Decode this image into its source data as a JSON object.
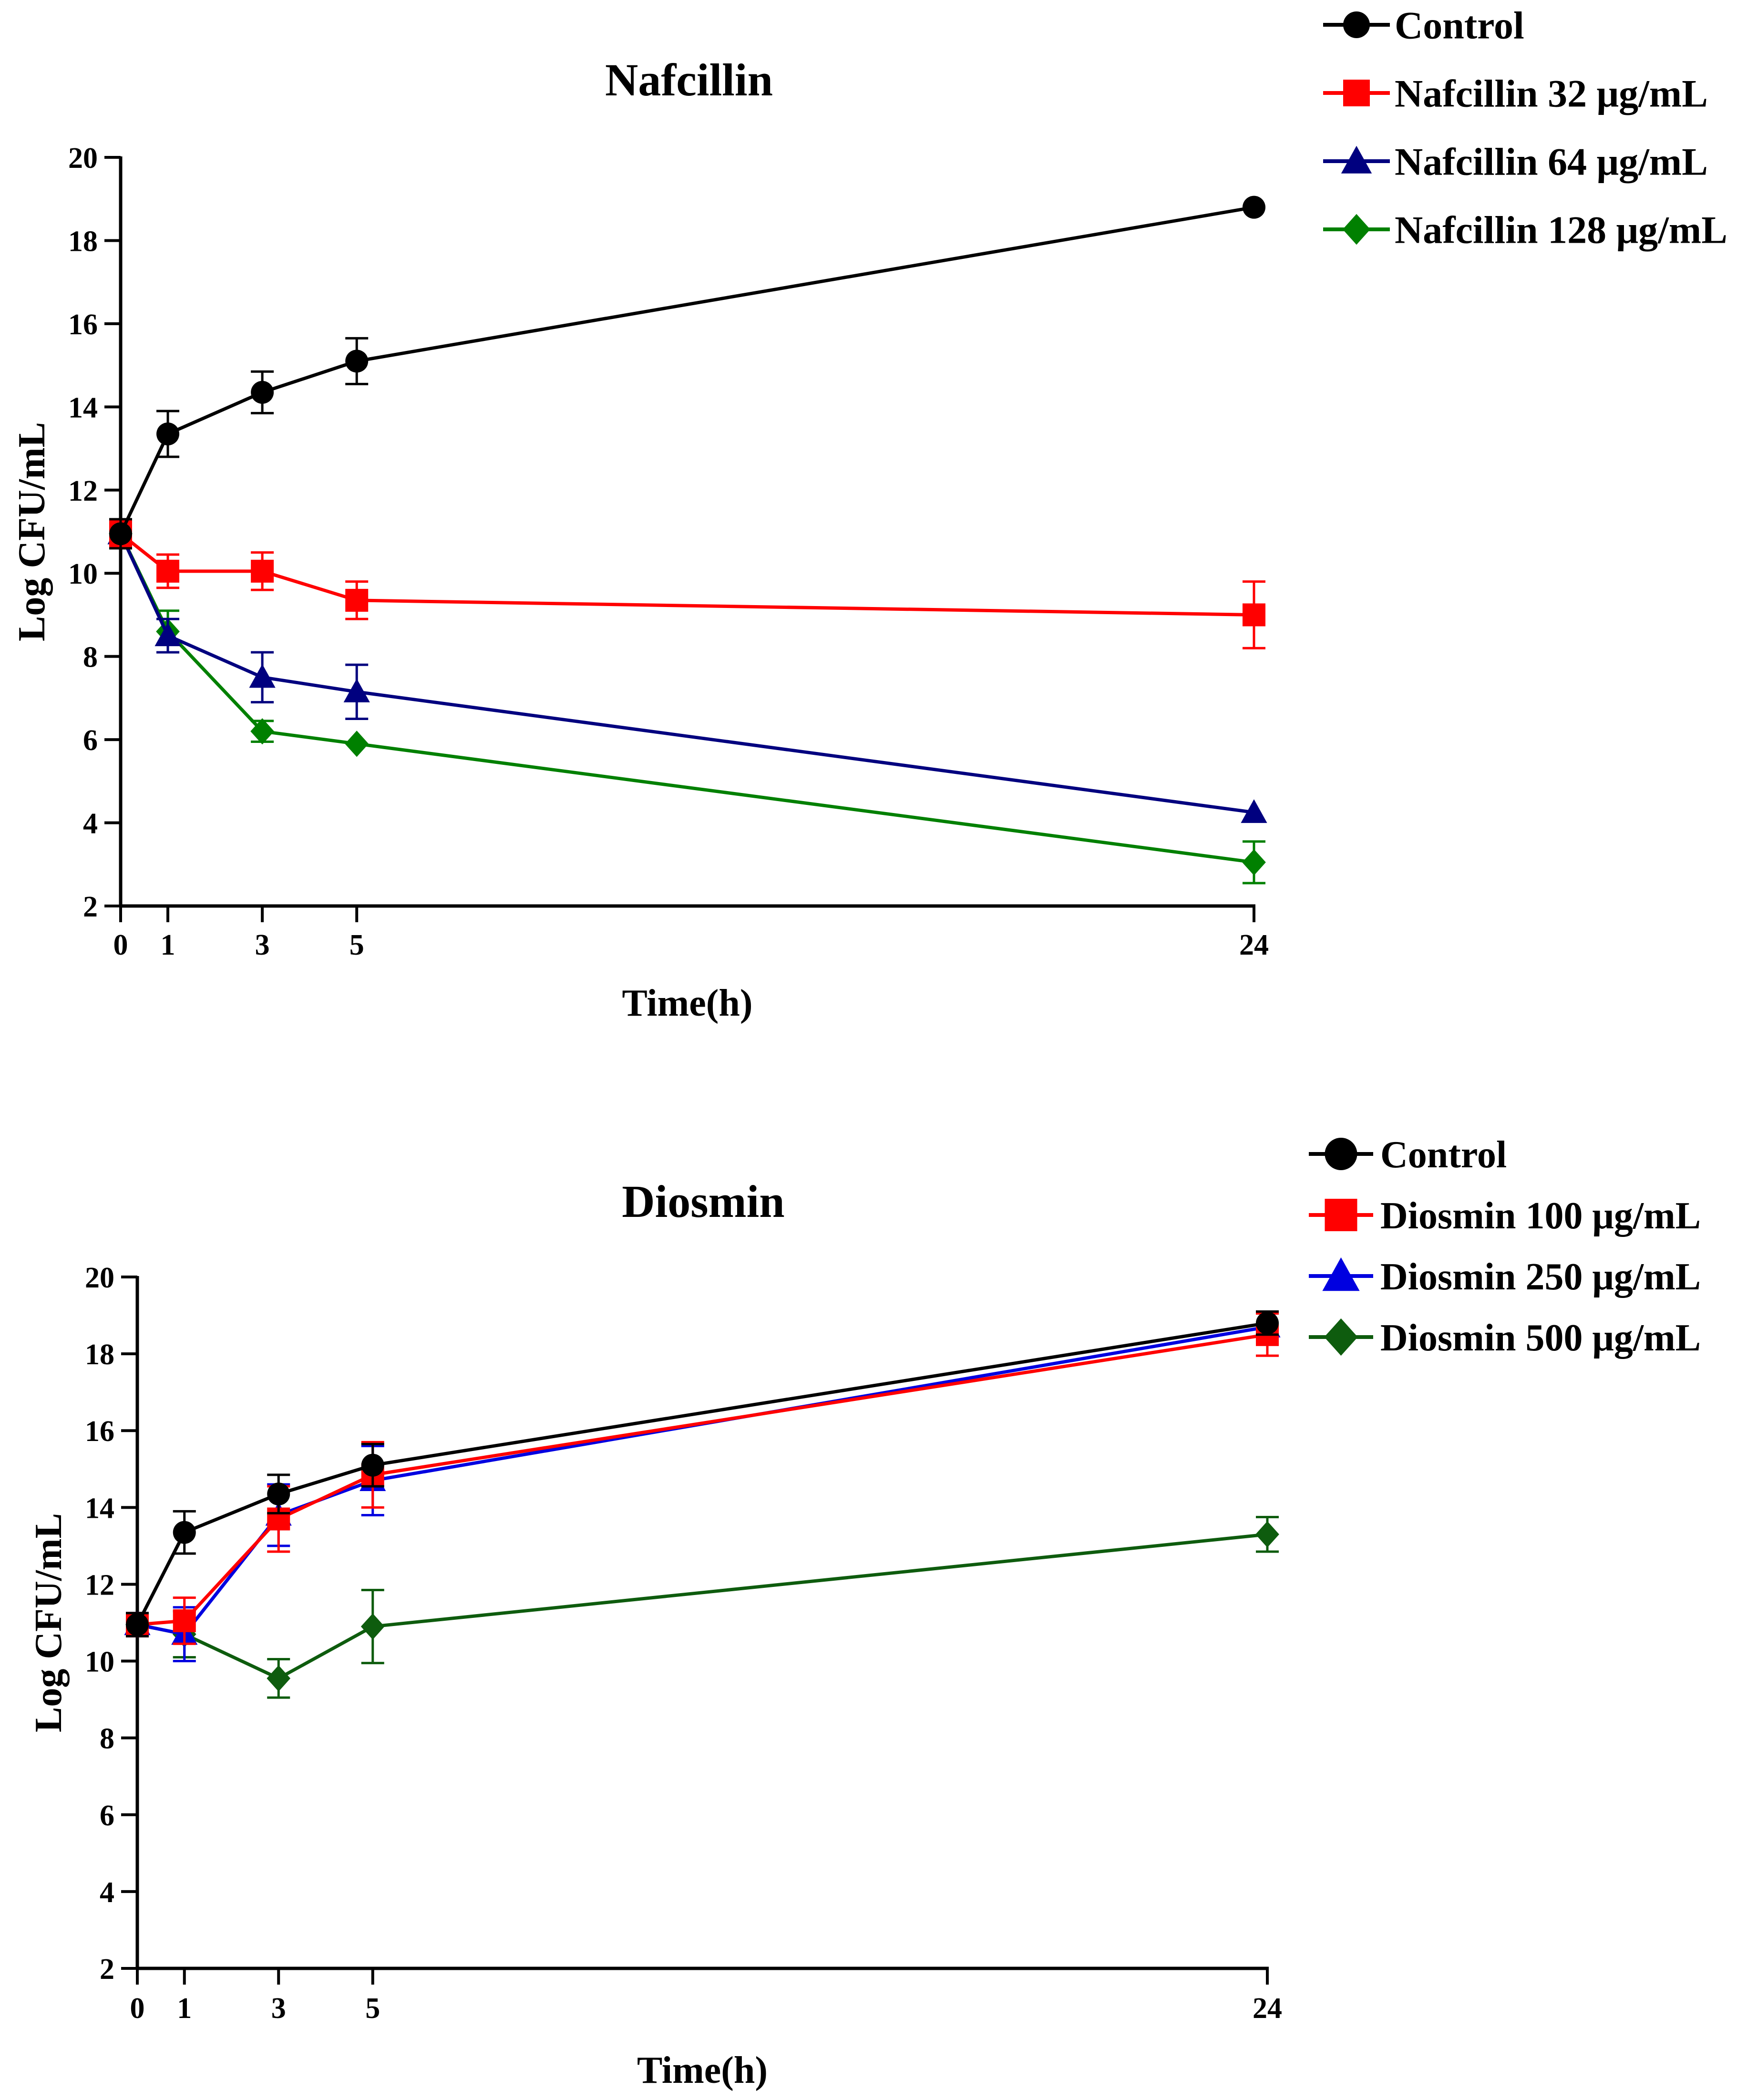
{
  "chart_data": [
    {
      "type": "line",
      "title": "Nafcillin",
      "xlabel": "Time(h)",
      "ylabel": "Log CFU/mL",
      "xlim": [
        0,
        24
      ],
      "ylim": [
        2,
        20
      ],
      "x_ticks": [
        0,
        1,
        3,
        5,
        24
      ],
      "y_ticks": [
        2,
        4,
        6,
        8,
        10,
        12,
        14,
        16,
        18,
        20
      ],
      "legend_position": "top-right",
      "x": [
        0,
        1,
        3,
        5,
        24
      ],
      "series": [
        {
          "name": "Control",
          "color": "#000000",
          "marker": "circle",
          "values": [
            10.95,
            13.35,
            14.35,
            15.1,
            18.8
          ],
          "errors": [
            0.35,
            0.55,
            0.5,
            0.55,
            0.0
          ]
        },
        {
          "name": "Nafcillin 32 μg/mL",
          "color": "#ff0000",
          "marker": "square",
          "values": [
            10.95,
            10.05,
            10.05,
            9.35,
            9.0
          ],
          "errors": [
            0.3,
            0.4,
            0.45,
            0.45,
            0.8
          ]
        },
        {
          "name": "Nafcillin 64 μg/mL",
          "color": "#00007f",
          "marker": "triangle",
          "values": [
            10.95,
            8.5,
            7.5,
            7.15,
            4.25
          ],
          "errors": [
            0.3,
            0.4,
            0.6,
            0.65,
            0.0
          ]
        },
        {
          "name": "Nafcillin 128 μg/mL",
          "color": "#008000",
          "marker": "diamond",
          "values": [
            10.95,
            8.6,
            6.2,
            5.9,
            3.05
          ],
          "errors": [
            0.3,
            0.5,
            0.25,
            0.0,
            0.5
          ]
        }
      ]
    },
    {
      "type": "line",
      "title": "Diosmin",
      "xlabel": "Time(h)",
      "ylabel": "Log CFU/mL",
      "xlim": [
        0,
        24
      ],
      "ylim": [
        2,
        20
      ],
      "x_ticks": [
        0,
        1,
        3,
        5,
        24
      ],
      "y_ticks": [
        2,
        4,
        6,
        8,
        10,
        12,
        14,
        16,
        18,
        20
      ],
      "legend_position": "top-right",
      "x": [
        0,
        1,
        3,
        5,
        24
      ],
      "series": [
        {
          "name": "Control",
          "color": "#000000",
          "marker": "circle",
          "values": [
            10.95,
            13.35,
            14.35,
            15.1,
            18.8
          ],
          "errors": [
            0.3,
            0.55,
            0.5,
            0.55,
            0.3
          ]
        },
        {
          "name": "Diosmin 100 μg/mL",
          "color": "#ff0000",
          "marker": "square",
          "values": [
            10.95,
            11.05,
            13.7,
            14.85,
            18.5
          ],
          "errors": [
            0.3,
            0.6,
            0.85,
            0.85,
            0.55
          ]
        },
        {
          "name": "Diosmin 250 μg/mL",
          "color": "#0000e0",
          "marker": "triangle",
          "values": [
            10.95,
            10.7,
            13.8,
            14.7,
            18.7
          ],
          "errors": [
            0.3,
            0.7,
            0.8,
            0.9,
            0.4
          ]
        },
        {
          "name": "Diosmin 500 μg/mL",
          "color": "#0e5c0e",
          "marker": "diamond",
          "values": [
            10.95,
            10.7,
            9.55,
            10.9,
            13.3
          ],
          "errors": [
            0.3,
            0.6,
            0.5,
            0.95,
            0.45
          ]
        }
      ]
    }
  ]
}
